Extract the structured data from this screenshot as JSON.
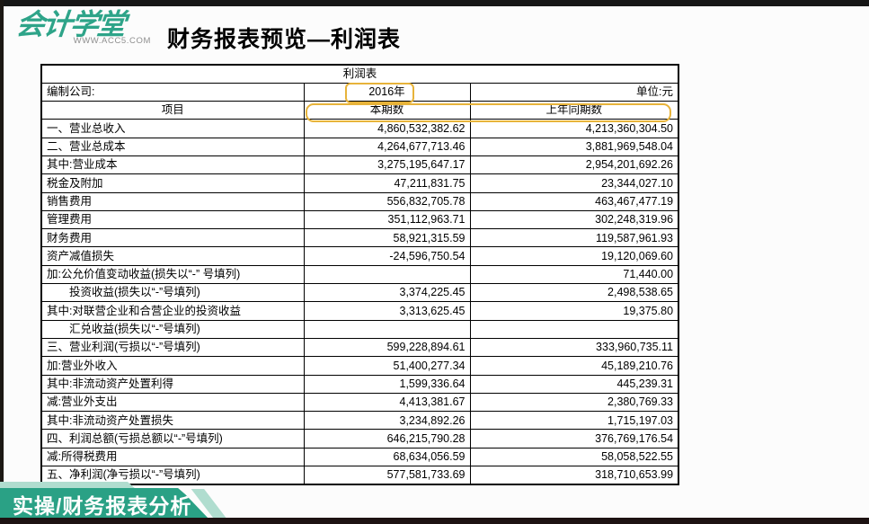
{
  "header": {
    "logo_text": "会计学堂",
    "logo_sub": "WWW.ACC5.COM",
    "page_title": "财务报表预览—利润表"
  },
  "table": {
    "title": "利润表",
    "meta": {
      "company_label": "编制公司:",
      "period": "2016年",
      "unit_label": "单位:元"
    },
    "columns": [
      "项目",
      "本期数",
      "上年同期数"
    ],
    "rows": [
      {
        "item": "一、营业总收入",
        "current": "4,860,532,382.62",
        "prior": "4,213,360,304.50",
        "indent": false
      },
      {
        "item": "二、营业总成本",
        "current": "4,264,677,713.46",
        "prior": "3,881,969,548.04",
        "indent": false
      },
      {
        "item": "其中:营业成本",
        "current": "3,275,195,647.17",
        "prior": "2,954,201,692.26",
        "indent": false
      },
      {
        "item": "税金及附加",
        "current": "47,211,831.75",
        "prior": "23,344,027.10",
        "indent": false
      },
      {
        "item": "销售费用",
        "current": "556,832,705.78",
        "prior": "463,467,477.19",
        "indent": false
      },
      {
        "item": "管理费用",
        "current": "351,112,963.71",
        "prior": "302,248,319.96",
        "indent": false
      },
      {
        "item": "财务费用",
        "current": "58,921,315.59",
        "prior": "119,587,961.93",
        "indent": false
      },
      {
        "item": "资产减值损失",
        "current": "-24,596,750.54",
        "prior": "19,120,069.60",
        "indent": false
      },
      {
        "item": "加:公允价值变动收益(损失以“-” 号填列)",
        "current": "",
        "prior": "71,440.00",
        "indent": false
      },
      {
        "item": "投资收益(损失以“-”号填列)",
        "current": "3,374,225.45",
        "prior": "2,498,538.65",
        "indent": true
      },
      {
        "item": "其中:对联营企业和合营企业的投资收益",
        "current": "3,313,625.45",
        "prior": "19,375.80",
        "indent": false
      },
      {
        "item": "汇兑收益(损失以“-”号填列)",
        "current": "",
        "prior": "",
        "indent": true
      },
      {
        "item": "三、营业利润(亏损以“-”号填列)",
        "current": "599,228,894.61",
        "prior": "333,960,735.11",
        "indent": false
      },
      {
        "item": "加:营业外收入",
        "current": "51,400,277.34",
        "prior": "45,189,210.76",
        "indent": false
      },
      {
        "item": "其中:非流动资产处置利得",
        "current": "1,599,336.64",
        "prior": "445,239.31",
        "indent": false
      },
      {
        "item": "减:营业外支出",
        "current": "4,413,381.67",
        "prior": "2,380,769.33",
        "indent": false
      },
      {
        "item": "其中:非流动资产处置损失",
        "current": "3,234,892.26",
        "prior": "1,715,197.03",
        "indent": false
      },
      {
        "item": "四、利润总额(亏损总额以“-”号填列)",
        "current": "646,215,790.28",
        "prior": "376,769,176.54",
        "indent": false
      },
      {
        "item": "减:所得税费用",
        "current": "68,634,056.59",
        "prior": "58,058,522.55",
        "indent": false
      },
      {
        "item": "五、净利润(净亏损以“-”号填列)",
        "current": "577,581,733.69",
        "prior": "318,710,653.99",
        "indent": false
      }
    ]
  },
  "footer": {
    "badge": "实操/财务报表分析"
  },
  "colors": {
    "brand_teal": "#2aa185",
    "accent_mint": "#b0ddcf",
    "highlight_yellow": "#e7b33a"
  }
}
